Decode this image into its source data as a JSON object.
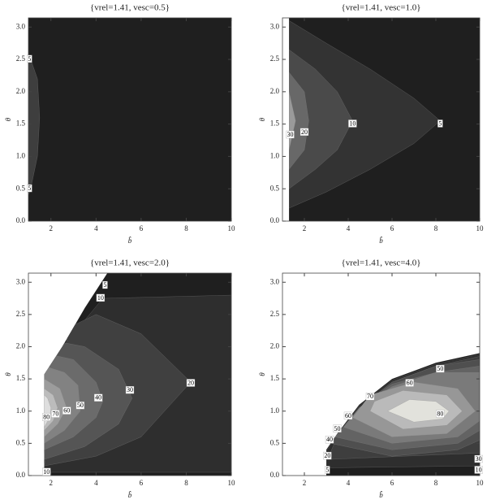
{
  "chart_data": [
    {
      "type": "contour",
      "title": "{vrel=1.41, vesc=0.5}",
      "x_label": "b̂",
      "y_label": "θ",
      "xlim": [
        1,
        10
      ],
      "ylim": [
        0,
        3.1416
      ],
      "xticks": [
        2,
        4,
        6,
        8,
        10
      ],
      "yticks": [
        {
          "value": 0,
          "label": "0.0"
        },
        0.5,
        {
          "value": 1,
          "label": "1.0"
        },
        1.5,
        {
          "value": 2,
          "label": "2.0"
        },
        2.5,
        {
          "value": 3,
          "label": "3.0"
        }
      ],
      "domain": {
        "color": "#1f1f1f",
        "x": [
          1,
          10,
          10,
          1
        ],
        "y": [
          0,
          0,
          3.1416,
          3.1416
        ]
      },
      "levels": [
        {
          "value": 5,
          "color": "#3e3e3e",
          "x": [
            1,
            1.1,
            1.4,
            1.5,
            1.4,
            1.1,
            1
          ],
          "y": [
            0.4,
            0.5,
            1.0,
            1.6,
            2.2,
            2.5,
            2.55
          ]
        }
      ],
      "labels": [
        {
          "value": 5,
          "x": 1.05,
          "y": 2.5
        },
        {
          "value": 5,
          "x": 1.05,
          "y": 0.5
        }
      ]
    },
    {
      "type": "contour",
      "title": "{vrel=1.41, vesc=1.0}",
      "x_label": "b̂",
      "y_label": "θ",
      "xlim": [
        1,
        10
      ],
      "ylim": [
        0,
        3.1416
      ],
      "xticks": [
        2,
        4,
        6,
        8,
        10
      ],
      "yticks": [
        {
          "value": 0,
          "label": "0.0"
        },
        0.5,
        {
          "value": 1,
          "label": "1.0"
        },
        1.5,
        {
          "value": 2,
          "label": "2.0"
        },
        2.5,
        {
          "value": 3,
          "label": "3.0"
        }
      ],
      "domain": {
        "color": "#1f1f1f",
        "x": [
          1.3,
          10,
          10,
          1.3
        ],
        "y": [
          0,
          0,
          3.1416,
          3.1416
        ]
      },
      "levels": [
        {
          "value": 5,
          "color": "#333333",
          "x": [
            1.3,
            3,
            5,
            7,
            8.2,
            7,
            5,
            3,
            1.3
          ],
          "y": [
            0.2,
            0.45,
            0.8,
            1.2,
            1.55,
            1.9,
            2.35,
            2.75,
            3.1
          ]
        },
        {
          "value": 10,
          "color": "#4a4a4a",
          "x": [
            1.3,
            2.5,
            3.5,
            4.2,
            3.5,
            2.5,
            1.3
          ],
          "y": [
            0.5,
            0.8,
            1.1,
            1.55,
            2.0,
            2.35,
            2.65
          ]
        },
        {
          "value": 20,
          "color": "#686868",
          "x": [
            1.3,
            2,
            2.2,
            2,
            1.3
          ],
          "y": [
            0.8,
            1.1,
            1.55,
            2.0,
            2.3
          ]
        },
        {
          "value": 30,
          "color": "#9a9a9a",
          "x": [
            1.3,
            1.6,
            1.3
          ],
          "y": [
            1.1,
            1.55,
            2.0
          ]
        }
      ],
      "labels": [
        {
          "value": 30,
          "x": 1.35,
          "y": 1.33
        },
        {
          "value": 20,
          "x": 2.0,
          "y": 1.37
        },
        {
          "value": 10,
          "x": 4.2,
          "y": 1.5
        },
        {
          "value": 5,
          "x": 8.2,
          "y": 1.5
        }
      ]
    },
    {
      "type": "contour",
      "title": "{vrel=1.41, vesc=2.0}",
      "x_label": "b̂",
      "y_label": "θ",
      "xlim": [
        1,
        10
      ],
      "ylim": [
        0,
        3.1416
      ],
      "xticks": [
        2,
        4,
        6,
        8,
        10
      ],
      "yticks": [
        {
          "value": 0,
          "label": "0.0"
        },
        0.5,
        {
          "value": 1,
          "label": "1.0"
        },
        1.5,
        {
          "value": 2,
          "label": "2.0"
        },
        2.5,
        {
          "value": 3,
          "label": "3.0"
        }
      ],
      "domain": {
        "color": "#1f1f1f",
        "x": [
          1.7,
          10,
          10,
          4.5,
          3.5,
          2.5,
          1.7
        ],
        "y": [
          0,
          0,
          3.1416,
          3.1416,
          2.6,
          2.0,
          1.57
        ]
      },
      "levels": [
        {
          "value": 10,
          "color": "#2e2e2e",
          "x": [
            1.7,
            10,
            10,
            4.3,
            3,
            1.7
          ],
          "y": [
            0.05,
            0.05,
            2.8,
            2.75,
            2.2,
            1.5
          ]
        },
        {
          "value": 20,
          "color": "#404040",
          "x": [
            1.7,
            4,
            6,
            8.2,
            6,
            4,
            2.8
          ],
          "y": [
            0.15,
            0.3,
            0.6,
            1.45,
            2.2,
            2.5,
            2.3
          ]
        },
        {
          "value": 30,
          "color": "#555555",
          "x": [
            1.7,
            3.5,
            5,
            5.6,
            5,
            3.5,
            2
          ],
          "y": [
            0.25,
            0.45,
            0.8,
            1.2,
            1.65,
            2.0,
            2.1
          ]
        },
        {
          "value": 40,
          "color": "#6b6b6b",
          "x": [
            1.7,
            3,
            4,
            4.3,
            4,
            3,
            1.7
          ],
          "y": [
            0.4,
            0.6,
            0.9,
            1.15,
            1.45,
            1.8,
            1.9
          ]
        },
        {
          "value": 50,
          "color": "#828282",
          "x": [
            1.7,
            2.6,
            3.3,
            3.2,
            2.6,
            1.7
          ],
          "y": [
            0.5,
            0.7,
            1.0,
            1.4,
            1.6,
            1.7
          ]
        },
        {
          "value": 60,
          "color": "#9c9c9c",
          "x": [
            1.7,
            2.3,
            2.7,
            2.4,
            1.7
          ],
          "y": [
            0.6,
            0.8,
            1.05,
            1.35,
            1.5
          ]
        },
        {
          "value": 70,
          "color": "#bcbcbc",
          "x": [
            1.7,
            2.1,
            2.3,
            2.1,
            1.7
          ],
          "y": [
            0.7,
            0.85,
            1.05,
            1.25,
            1.35
          ]
        },
        {
          "value": 80,
          "color": "#dedede",
          "x": [
            1.7,
            1.95,
            2.0,
            1.85,
            1.7
          ],
          "y": [
            0.75,
            0.9,
            1.05,
            1.2,
            1.25
          ]
        }
      ],
      "labels": [
        {
          "value": 80,
          "x": 1.8,
          "y": 0.9
        },
        {
          "value": 70,
          "x": 2.2,
          "y": 0.95
        },
        {
          "value": 60,
          "x": 2.7,
          "y": 1.0
        },
        {
          "value": 50,
          "x": 3.3,
          "y": 1.08
        },
        {
          "value": 40,
          "x": 4.1,
          "y": 1.2
        },
        {
          "value": 30,
          "x": 5.5,
          "y": 1.32
        },
        {
          "value": 20,
          "x": 8.2,
          "y": 1.43
        },
        {
          "value": 10,
          "x": 4.2,
          "y": 2.75
        },
        {
          "value": 5,
          "x": 4.4,
          "y": 2.95
        },
        {
          "value": 10,
          "x": 1.8,
          "y": 0.05
        }
      ]
    },
    {
      "type": "contour",
      "title": "{vrel=1.41, vesc=4.0}",
      "x_label": "b̂",
      "y_label": "θ",
      "xlim": [
        1,
        10
      ],
      "ylim": [
        0,
        3.1416
      ],
      "xticks": [
        2,
        4,
        6,
        8,
        10
      ],
      "yticks": [
        {
          "value": 0,
          "label": "0.0"
        },
        0.5,
        {
          "value": 1,
          "label": "1.0"
        },
        1.5,
        {
          "value": 2,
          "label": "2.0"
        },
        2.5,
        {
          "value": 3,
          "label": "3.0"
        }
      ],
      "domain": {
        "color": "#1f1f1f",
        "x": [
          3,
          10,
          10,
          8,
          6,
          4.5,
          3.5,
          3
        ],
        "y": [
          0,
          0,
          1.9,
          1.75,
          1.5,
          1.1,
          0.65,
          0.4
        ]
      },
      "levels": [
        {
          "value": 10,
          "color": "#2e2e2e",
          "x": [
            3,
            10,
            10,
            8,
            6,
            4.5,
            3.5,
            3
          ],
          "y": [
            0.12,
            0.15,
            1.88,
            1.73,
            1.48,
            1.08,
            0.63,
            0.38
          ]
        },
        {
          "value": 20,
          "color": "#3e3e3e",
          "x": [
            3.05,
            10,
            10,
            8,
            6,
            4.5,
            3.5
          ],
          "y": [
            0.25,
            0.35,
            1.85,
            1.7,
            1.45,
            1.05,
            0.6
          ]
        },
        {
          "value": 30,
          "color": "#4f4f4f",
          "x": [
            3.2,
            6,
            9,
            10,
            10,
            8,
            6,
            4.5
          ],
          "y": [
            0.5,
            0.3,
            0.4,
            0.55,
            1.8,
            1.7,
            1.45,
            1.05
          ]
        },
        {
          "value": 40,
          "color": "#636363",
          "x": [
            3.4,
            6,
            9,
            10,
            10,
            8,
            6,
            4.5
          ],
          "y": [
            0.6,
            0.4,
            0.5,
            0.7,
            1.7,
            1.6,
            1.42,
            1.05
          ]
        },
        {
          "value": 50,
          "color": "#7a7a7a",
          "x": [
            3.8,
            6,
            9,
            10,
            10,
            8,
            6,
            4.5
          ],
          "y": [
            0.75,
            0.5,
            0.6,
            0.85,
            1.6,
            1.6,
            1.38,
            1.05
          ]
        },
        {
          "value": 60,
          "color": "#979797",
          "x": [
            4.2,
            6,
            8.5,
            9.8,
            9,
            7,
            5
          ],
          "y": [
            0.9,
            0.6,
            0.65,
            1.0,
            1.35,
            1.45,
            1.25
          ]
        },
        {
          "value": 70,
          "color": "#bababa",
          "x": [
            5,
            6.5,
            8.5,
            9.2,
            8.5,
            6.5,
            5.2
          ],
          "y": [
            1.0,
            0.72,
            0.78,
            1.0,
            1.25,
            1.32,
            1.15
          ]
        },
        {
          "value": 80,
          "color": "#e2e2dc",
          "x": [
            5.8,
            7,
            8.3,
            8.6,
            8,
            6.8
          ],
          "y": [
            1.0,
            0.83,
            0.88,
            1.0,
            1.15,
            1.18
          ]
        }
      ],
      "labels": [
        {
          "value": 5,
          "x": 3.05,
          "y": 0.08
        },
        {
          "value": 20,
          "x": 3.05,
          "y": 0.3
        },
        {
          "value": 40,
          "x": 3.15,
          "y": 0.55
        },
        {
          "value": 50,
          "x": 3.5,
          "y": 0.72
        },
        {
          "value": 60,
          "x": 4.0,
          "y": 0.92
        },
        {
          "value": 70,
          "x": 5.0,
          "y": 1.22
        },
        {
          "value": 60,
          "x": 6.8,
          "y": 1.43
        },
        {
          "value": 50,
          "x": 8.2,
          "y": 1.65
        },
        {
          "value": 80,
          "x": 8.2,
          "y": 0.95
        },
        {
          "value": 30,
          "x": 9.95,
          "y": 0.25
        },
        {
          "value": 10,
          "x": 9.95,
          "y": 0.08
        }
      ]
    }
  ]
}
